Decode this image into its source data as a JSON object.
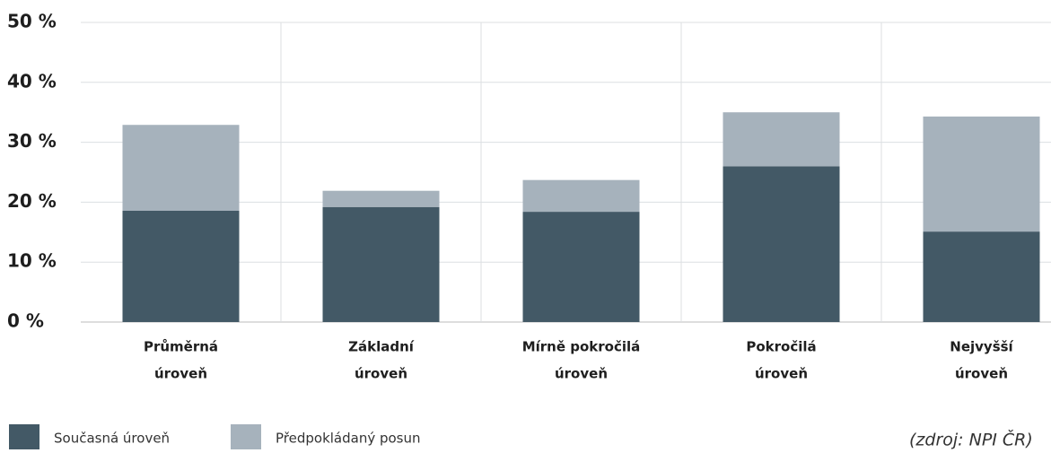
{
  "chart_data": {
    "type": "stacked_bar",
    "categories": [
      [
        "Průměrná",
        "úroveň"
      ],
      [
        "Základní",
        "úroveň"
      ],
      [
        "Mírně pokročilá",
        "úroveň"
      ],
      [
        "Pokročilá",
        "úroveň"
      ],
      [
        "Nejvyšší",
        "úroveň"
      ]
    ],
    "series": [
      {
        "name": "Současná úroveň",
        "color": "#435966",
        "values": [
          18.6,
          19.2,
          18.4,
          26.0,
          15.1
        ]
      },
      {
        "name": "Předpokládaný posun",
        "color": "#a6b2bc",
        "values": [
          14.3,
          2.7,
          5.3,
          9.0,
          19.2
        ]
      }
    ],
    "ylim": [
      0,
      50
    ],
    "yticks": [
      {
        "value": 0,
        "label": "0 %"
      },
      {
        "value": 10,
        "label": "10 %"
      },
      {
        "value": 20,
        "label": "20 %"
      },
      {
        "value": 30,
        "label": "30 %"
      },
      {
        "value": 40,
        "label": "40 %"
      },
      {
        "value": 50,
        "label": "50 %"
      }
    ],
    "grid": true,
    "source": "(zdroj: NPI ČR)"
  }
}
